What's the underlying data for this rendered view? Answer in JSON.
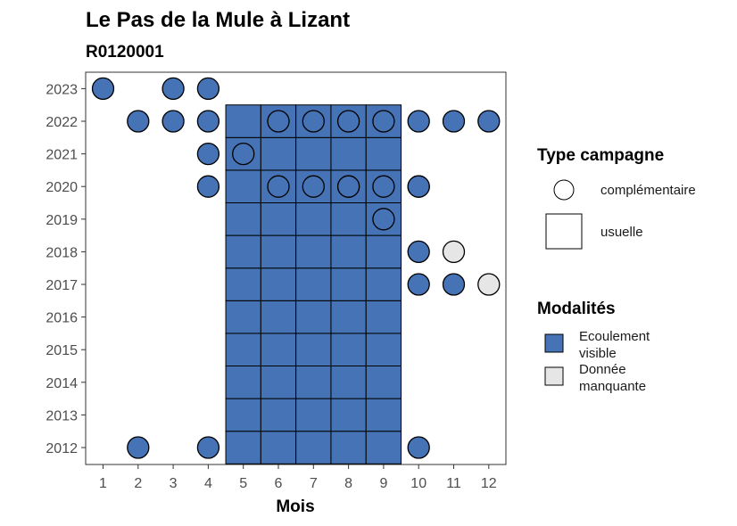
{
  "chart_data": {
    "type": "heatmap",
    "title": "Le Pas de la Mule à Lizant",
    "subtitle": "R0120001",
    "xlabel": "Mois",
    "ylabel": "",
    "x": [
      1,
      2,
      3,
      4,
      5,
      6,
      7,
      8,
      9,
      10,
      11,
      12
    ],
    "y": [
      2012,
      2013,
      2014,
      2015,
      2016,
      2017,
      2018,
      2019,
      2020,
      2021,
      2022,
      2023
    ],
    "grid": false,
    "legend_position": "right",
    "legend": {
      "type_title": "Type campagne",
      "type_items": [
        {
          "key": "complementaire",
          "label": "complémentaire",
          "shape": "circle"
        },
        {
          "key": "usuelle",
          "label": "usuelle",
          "shape": "square"
        }
      ],
      "modalite_title": "Modalités",
      "modalite_items": [
        {
          "key": "ecoulement",
          "label_lines": [
            "Ecoulement",
            "visible"
          ],
          "color": "#4573b5"
        },
        {
          "key": "manquante",
          "label_lines": [
            "Donnée",
            "manquante"
          ],
          "color": "#e6e6e6"
        }
      ]
    },
    "colors": {
      "ecoulement": "#4573b5",
      "manquante": "#e6e6e6"
    },
    "usuelle": [
      {
        "year": 2012,
        "months": [
          5,
          6,
          7,
          8,
          9
        ],
        "modalite": "ecoulement"
      },
      {
        "year": 2013,
        "months": [
          5,
          6,
          7,
          8,
          9
        ],
        "modalite": "ecoulement"
      },
      {
        "year": 2014,
        "months": [
          5,
          6,
          7,
          8,
          9
        ],
        "modalite": "ecoulement"
      },
      {
        "year": 2015,
        "months": [
          5,
          6,
          7,
          8,
          9
        ],
        "modalite": "ecoulement"
      },
      {
        "year": 2016,
        "months": [
          5,
          6,
          7,
          8,
          9
        ],
        "modalite": "ecoulement"
      },
      {
        "year": 2017,
        "months": [
          5,
          6,
          7,
          8,
          9
        ],
        "modalite": "ecoulement"
      },
      {
        "year": 2018,
        "months": [
          5,
          6,
          7,
          8,
          9
        ],
        "modalite": "ecoulement"
      },
      {
        "year": 2019,
        "months": [
          5,
          6,
          7,
          8,
          9
        ],
        "modalite": "ecoulement"
      },
      {
        "year": 2020,
        "months": [
          5,
          6,
          7,
          8,
          9
        ],
        "modalite": "ecoulement"
      },
      {
        "year": 2021,
        "months": [
          5,
          6,
          7,
          8,
          9
        ],
        "modalite": "ecoulement"
      },
      {
        "year": 2022,
        "months": [
          5,
          6,
          7,
          8,
          9
        ],
        "modalite": "ecoulement"
      }
    ],
    "complementaire": [
      {
        "year": 2023,
        "month": 1,
        "modalite": "ecoulement"
      },
      {
        "year": 2023,
        "month": 3,
        "modalite": "ecoulement"
      },
      {
        "year": 2023,
        "month": 4,
        "modalite": "ecoulement"
      },
      {
        "year": 2022,
        "month": 2,
        "modalite": "ecoulement"
      },
      {
        "year": 2022,
        "month": 3,
        "modalite": "ecoulement"
      },
      {
        "year": 2022,
        "month": 4,
        "modalite": "ecoulement"
      },
      {
        "year": 2022,
        "month": 6,
        "modalite": "ecoulement"
      },
      {
        "year": 2022,
        "month": 7,
        "modalite": "ecoulement"
      },
      {
        "year": 2022,
        "month": 8,
        "modalite": "ecoulement"
      },
      {
        "year": 2022,
        "month": 9,
        "modalite": "ecoulement"
      },
      {
        "year": 2022,
        "month": 10,
        "modalite": "ecoulement"
      },
      {
        "year": 2022,
        "month": 11,
        "modalite": "ecoulement"
      },
      {
        "year": 2022,
        "month": 12,
        "modalite": "ecoulement"
      },
      {
        "year": 2021,
        "month": 4,
        "modalite": "ecoulement"
      },
      {
        "year": 2021,
        "month": 5,
        "modalite": "ecoulement"
      },
      {
        "year": 2020,
        "month": 4,
        "modalite": "ecoulement"
      },
      {
        "year": 2020,
        "month": 6,
        "modalite": "ecoulement"
      },
      {
        "year": 2020,
        "month": 7,
        "modalite": "ecoulement"
      },
      {
        "year": 2020,
        "month": 8,
        "modalite": "ecoulement"
      },
      {
        "year": 2020,
        "month": 8,
        "modalite": "ecoulement"
      },
      {
        "year": 2020,
        "month": 9,
        "modalite": "ecoulement"
      },
      {
        "year": 2020,
        "month": 10,
        "modalite": "ecoulement"
      },
      {
        "year": 2020,
        "month": 10,
        "modalite": "ecoulement"
      },
      {
        "year": 2019,
        "month": 9,
        "modalite": "ecoulement"
      },
      {
        "year": 2018,
        "month": 10,
        "modalite": "ecoulement"
      },
      {
        "year": 2018,
        "month": 11,
        "modalite": "manquante"
      },
      {
        "year": 2017,
        "month": 10,
        "modalite": "ecoulement"
      },
      {
        "year": 2017,
        "month": 11,
        "modalite": "ecoulement"
      },
      {
        "year": 2017,
        "month": 12,
        "modalite": "manquante"
      },
      {
        "year": 2012,
        "month": 2,
        "modalite": "ecoulement"
      },
      {
        "year": 2012,
        "month": 4,
        "modalite": "ecoulement"
      },
      {
        "year": 2012,
        "month": 10,
        "modalite": "ecoulement"
      }
    ]
  }
}
